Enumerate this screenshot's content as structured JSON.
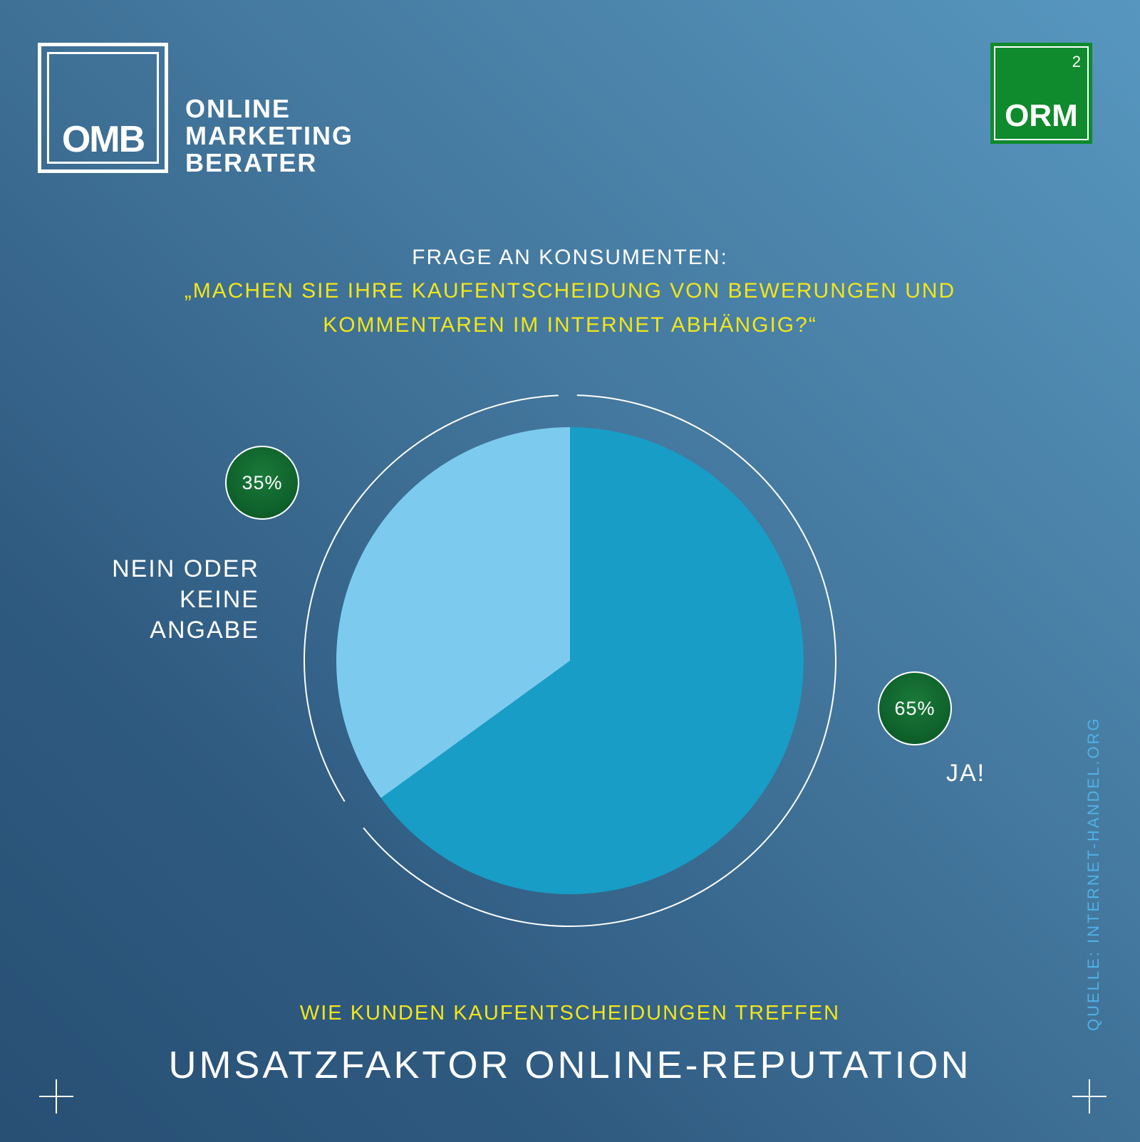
{
  "logo_left": {
    "box_text": "OMB",
    "lines": [
      "ONLINE",
      "MARKETING",
      "BERATER"
    ]
  },
  "logo_right": {
    "text": "ORM",
    "superscript": "2"
  },
  "question": {
    "label": "FRAGE AN KONSUMENTEN:",
    "line1": "„MACHEN SIE IHRE KAUFENTSCHEIDUNG VON BEWERUNGEN UND",
    "line2": "KOMMENTAREN IM INTERNET ABHÄNGIG?“"
  },
  "labels": {
    "no": [
      "NEIN ODER",
      "KEINE",
      "ANGABE"
    ],
    "yes": "JA!",
    "no_pct": "35%",
    "yes_pct": "65%"
  },
  "subtitle": "WIE KUNDEN KAUFENTSCHEIDUNGEN TREFFEN",
  "title": "UMSATZFAKTOR ONLINE-REPUTATION",
  "source": "QUELLE: INTERNET-HANDEL.ORG",
  "colors": {
    "yes": "#179dc6",
    "no": "#7ccbef",
    "accent_yellow": "#f2e61a",
    "badge_green": "#0e5f2a",
    "orm_green": "#0f8a2c"
  },
  "chart_data": {
    "type": "pie",
    "categories": [
      "JA!",
      "NEIN ODER KEINE ANGABE"
    ],
    "values": [
      65,
      35
    ],
    "start": "12 o'clock, clockwise"
  }
}
